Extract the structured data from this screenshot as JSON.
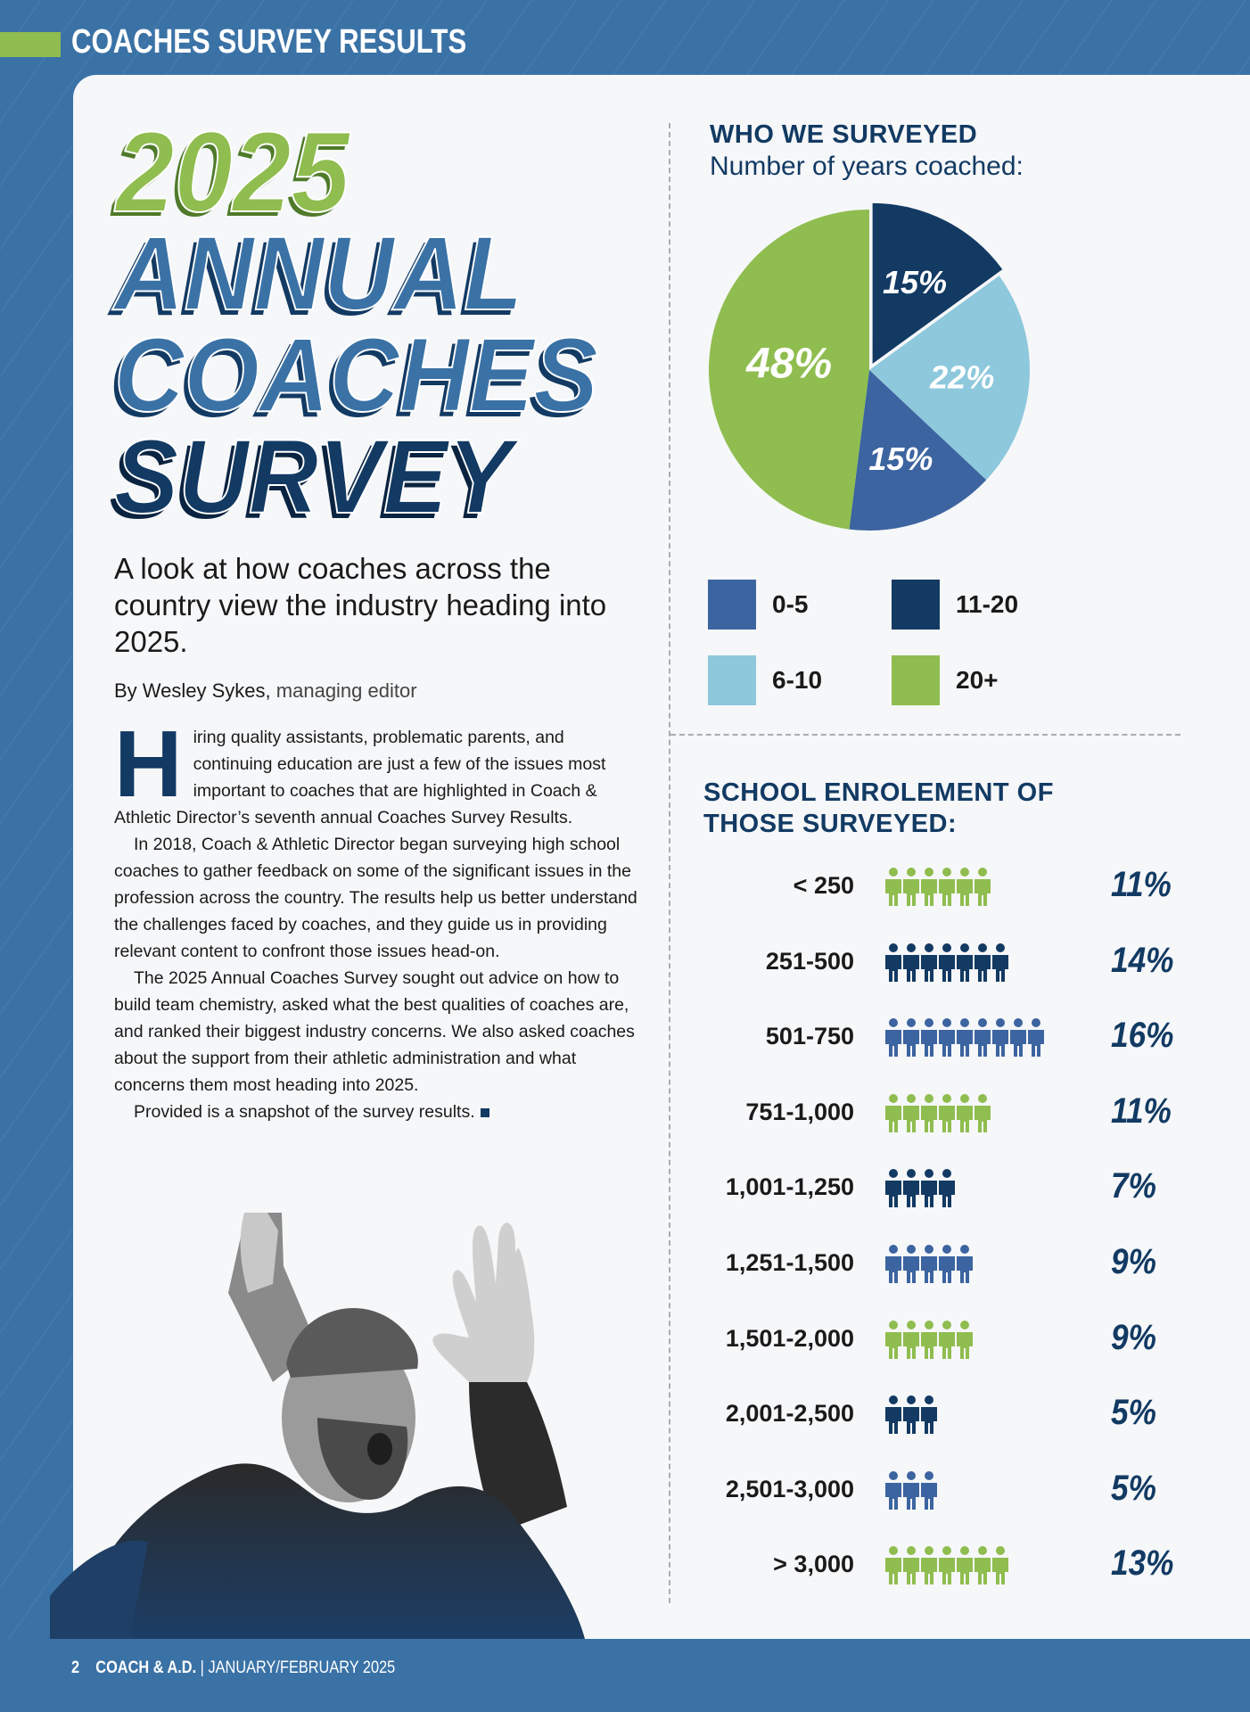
{
  "header": {
    "section_label": "COACHES SURVEY RESULTS"
  },
  "title": {
    "year": "2025",
    "line1": "ANNUAL",
    "line2": "COACHES",
    "line3": "SURVEY"
  },
  "subtitle": "A look at how coaches across the country view the industry heading into 2025.",
  "byline": {
    "author": "By Wesley Sykes,",
    "role": "managing editor"
  },
  "article": {
    "drop_cap": "H",
    "p1": "iring quality assistants, problematic parents, and continuing education are just a few of the issues most important to coaches that are highlighted in Coach & Athletic Director’s seventh annual Coaches Survey Results.",
    "p2": "In 2018, Coach & Athletic Director began surveying high school coaches to gather feedback on some of the significant issues in the profession across the country. The results help us better understand the challenges faced by coaches, and they guide us in providing relevant content to confront those issues head-on.",
    "p3": "The 2025 Annual Coaches Survey sought out advice on how to build team chemistry, asked what the best qualities of coaches are, and ranked their biggest industry concerns. We also asked coaches about the support from their athletic administration and what concerns them most heading into 2025.",
    "p4": "Provided is a snapshot of the survey results."
  },
  "who_surveyed": {
    "heading": "WHO WE SURVEYED",
    "subheading": "Number of years coached:"
  },
  "legend": [
    {
      "label": "0-5",
      "color": "#3c64a0"
    },
    {
      "label": "11-20",
      "color": "#123a63"
    },
    {
      "label": "6-10",
      "color": "#8ec8dc"
    },
    {
      "label": "20+",
      "color": "#8fbd4f"
    }
  ],
  "enrolment": {
    "heading_line1": "SCHOOL ENROLEMENT OF",
    "heading_line2": "THOSE SURVEYED:",
    "rows": [
      {
        "range": "< 250",
        "pct": "11%",
        "icons": 6,
        "color": "#8fbd4f"
      },
      {
        "range": "251-500",
        "pct": "14%",
        "icons": 7,
        "color": "#123a63"
      },
      {
        "range": "501-750",
        "pct": "16%",
        "icons": 9,
        "color": "#3c64a0"
      },
      {
        "range": "751-1,000",
        "pct": "11%",
        "icons": 6,
        "color": "#8fbd4f"
      },
      {
        "range": "1,001-1,250",
        "pct": "7%",
        "icons": 4,
        "color": "#123a63"
      },
      {
        "range": "1,251-1,500",
        "pct": "9%",
        "icons": 5,
        "color": "#3c64a0"
      },
      {
        "range": "1,501-2,000",
        "pct": "9%",
        "icons": 5,
        "color": "#8fbd4f"
      },
      {
        "range": "2,001-2,500",
        "pct": "5%",
        "icons": 3,
        "color": "#123a63"
      },
      {
        "range": "2,501-3,000",
        "pct": "5%",
        "icons": 3,
        "color": "#3c64a0"
      },
      {
        "range": "> 3,000",
        "pct": "13%",
        "icons": 7,
        "color": "#8fbd4f"
      }
    ]
  },
  "footer": {
    "page": "2",
    "publication": "COACH & A.D.",
    "issue": "| JANUARY/FEBRUARY 2025"
  },
  "chart_data": {
    "type": "pie",
    "title": "Number of years coached:",
    "categories": [
      "11-20",
      "6-10",
      "0-5",
      "20+"
    ],
    "values": [
      15,
      22,
      15,
      48
    ],
    "labels": [
      "15%",
      "22%",
      "15%",
      "48%"
    ],
    "colors": [
      "#123a63",
      "#8ec8dc",
      "#3c64a0",
      "#8fbd4f"
    ]
  }
}
